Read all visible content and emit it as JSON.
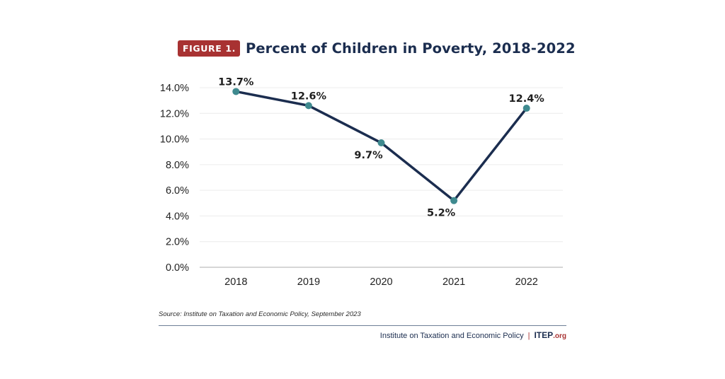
{
  "figure_label": "FIGURE 1.",
  "colors": {
    "line": "#1b2d4f",
    "marker": "#3f8a8f",
    "badge": "#a83232",
    "grid": "#ececec",
    "axis": "#c8c8c8"
  },
  "chart_data": {
    "type": "line",
    "title": "Percent of Children in Poverty, 2018-2022",
    "xlabel": "",
    "ylabel": "",
    "categories": [
      "2018",
      "2019",
      "2020",
      "2021",
      "2022"
    ],
    "series": [
      {
        "name": "Percent of Children in Poverty",
        "values": [
          13.7,
          12.6,
          9.7,
          5.2,
          12.4
        ],
        "labels": [
          "13.7%",
          "12.6%",
          "9.7%",
          "5.2%",
          "12.4%"
        ],
        "label_positions": [
          "above",
          "above",
          "below",
          "below",
          "above"
        ]
      }
    ],
    "ylim": [
      0,
      14
    ],
    "yticks": [
      0,
      2,
      4,
      6,
      8,
      10,
      12,
      14
    ],
    "ytick_labels": [
      "0.0%",
      "2.0%",
      "4.0%",
      "6.0%",
      "8.0%",
      "10.0%",
      "12.0%",
      "14.0%"
    ],
    "grid": true,
    "legend": "none"
  },
  "source_note": "Source: Institute on Taxation and Economic Policy, September 2023",
  "footer": {
    "org_name": "Institute on Taxation and Economic Policy",
    "separator": "|",
    "brand": "ITEP",
    "brand_suffix": ".org"
  }
}
